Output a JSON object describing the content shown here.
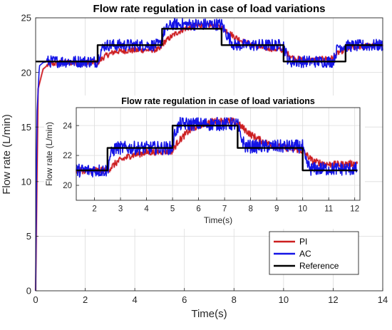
{
  "chart_data": [
    {
      "type": "line",
      "title": "Flow rate regulation in case of load variations",
      "xlabel": "Time(s)",
      "ylabel": "Flow rate (L/min)",
      "xlim": [
        0,
        14
      ],
      "ylim": [
        0,
        25
      ],
      "xticks": [
        0,
        2,
        4,
        6,
        8,
        10,
        12,
        14
      ],
      "yticks": [
        0,
        5,
        10,
        15,
        20,
        25
      ],
      "grid": true,
      "legend": {
        "placement": "bottom-right",
        "entries": [
          "PI",
          "AC",
          "Reference"
        ]
      },
      "series": [
        {
          "name": "PI",
          "color": "#cc1f1f",
          "x": [
            0,
            0.1,
            0.3,
            0.5,
            1.0,
            2.5,
            2.8,
            3.2,
            3.8,
            5.0,
            5.2,
            5.6,
            6.0,
            6.6,
            7.2,
            7.6,
            8.0,
            8.4,
            9.0,
            9.8,
            10.0,
            10.4,
            11.0,
            12.0,
            12.2,
            12.6,
            13.2,
            14.0
          ],
          "y": [
            0,
            18.5,
            20.3,
            20.7,
            20.9,
            20.9,
            21.5,
            21.9,
            22.0,
            22.1,
            22.8,
            23.5,
            24.0,
            24.3,
            24.3,
            24.0,
            23.3,
            22.8,
            22.3,
            22.1,
            22.0,
            21.3,
            21.1,
            21.3,
            21.8,
            22.2,
            22.4,
            22.5
          ]
        },
        {
          "name": "AC",
          "color": "#1414e6",
          "x": [
            0,
            0.05,
            0.15,
            0.3,
            0.5,
            2.5,
            2.6,
            2.8,
            5.0,
            5.2,
            5.5,
            7.5,
            7.7,
            8.0,
            10.0,
            10.2,
            12.0,
            12.2,
            14.0
          ],
          "y": [
            0,
            16.0,
            20.6,
            20.9,
            21.0,
            21.0,
            21.9,
            22.5,
            22.5,
            23.8,
            24.4,
            24.4,
            23.5,
            22.5,
            22.5,
            21.0,
            21.0,
            22.4,
            22.5
          ]
        },
        {
          "name": "Reference",
          "color": "#000000",
          "x": [
            0,
            2.5,
            2.5,
            5.1,
            5.1,
            7.5,
            7.5,
            10.0,
            10.0,
            12.5,
            12.5,
            14.0
          ],
          "y": [
            21,
            21,
            22.5,
            22.5,
            24,
            24,
            22.5,
            22.5,
            21,
            21,
            22.5,
            22.5
          ]
        }
      ]
    },
    {
      "type": "line",
      "title": "Flow rate regulation in case of load variations",
      "xlabel": "Time(s)",
      "ylabel": "Flow rate (L/min)",
      "xlim": [
        1.3,
        12.2
      ],
      "ylim": [
        19,
        25.2
      ],
      "xticks": [
        2,
        3,
        4,
        5,
        6,
        7,
        8,
        9,
        10,
        11,
        12
      ],
      "yticks": [
        20,
        22,
        24
      ],
      "grid": true,
      "series": [
        {
          "name": "PI",
          "color": "#cc1f1f",
          "x": [
            1.3,
            2.5,
            2.9,
            3.4,
            4.0,
            5.0,
            5.2,
            5.6,
            6.0,
            6.6,
            7.3,
            7.6,
            8.0,
            8.5,
            9.0,
            9.8,
            10.0,
            10.4,
            11.0,
            11.6,
            12.1
          ],
          "y": [
            21.0,
            21.0,
            21.6,
            22.0,
            22.2,
            22.3,
            22.9,
            23.6,
            24.0,
            24.3,
            24.3,
            24.0,
            23.4,
            22.9,
            22.6,
            22.4,
            22.3,
            21.6,
            21.4,
            21.4,
            21.5
          ]
        },
        {
          "name": "AC",
          "color": "#1414e6",
          "x": [
            1.3,
            2.5,
            2.6,
            2.8,
            5.0,
            5.1,
            5.3,
            7.5,
            7.6,
            7.8,
            10.0,
            10.1,
            10.3,
            12.1
          ],
          "y": [
            21.0,
            21.0,
            22.0,
            22.5,
            22.5,
            23.6,
            24.1,
            24.1,
            23.3,
            22.6,
            22.6,
            21.6,
            21.1,
            21.1
          ]
        },
        {
          "name": "Reference",
          "color": "#000000",
          "x": [
            1.3,
            2.5,
            2.5,
            5.0,
            5.0,
            7.5,
            7.5,
            10.0,
            10.0,
            12.1
          ],
          "y": [
            21,
            21,
            22.5,
            22.5,
            24,
            24,
            22.5,
            22.5,
            21,
            21
          ]
        }
      ]
    }
  ]
}
